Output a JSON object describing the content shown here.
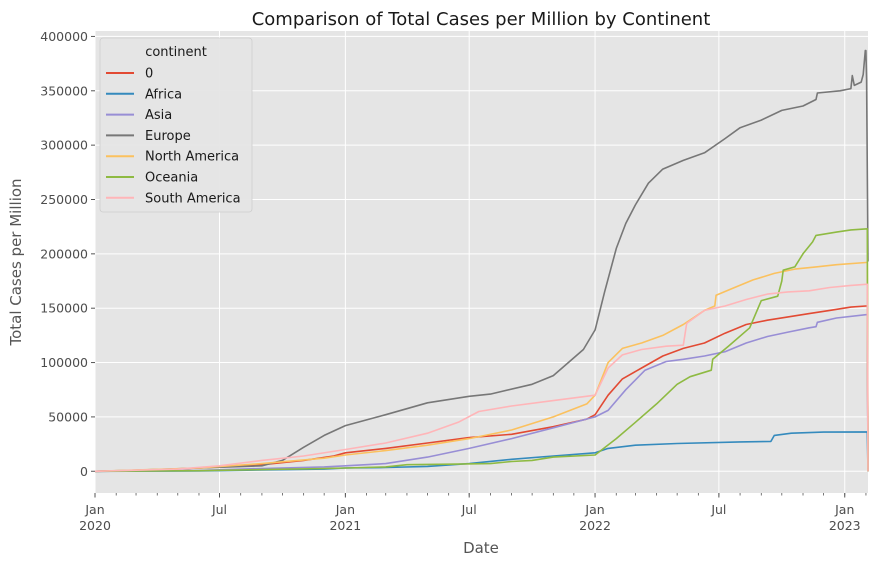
{
  "chart_data": {
    "type": "line",
    "title": "Comparison of Total Cases per Million by Continent",
    "xlabel": "Date",
    "ylabel": "Total Cases per Million",
    "xlim": [
      "2020-01-01",
      "2023-02-04"
    ],
    "ylim": [
      -20000,
      405000
    ],
    "yticks": [
      0,
      50000,
      100000,
      150000,
      200000,
      250000,
      300000,
      350000,
      400000
    ],
    "xticks": [
      {
        "date": "2020-01-01",
        "label": "Jan",
        "year": "2020"
      },
      {
        "date": "2020-07-01",
        "label": "Jul",
        "year": ""
      },
      {
        "date": "2021-01-01",
        "label": "Jan",
        "year": "2021"
      },
      {
        "date": "2021-07-01",
        "label": "Jul",
        "year": ""
      },
      {
        "date": "2022-01-01",
        "label": "Jan",
        "year": "2022"
      },
      {
        "date": "2022-07-01",
        "label": "Jul",
        "year": ""
      },
      {
        "date": "2023-01-01",
        "label": "Jan",
        "year": "2023"
      }
    ],
    "grid": true,
    "legend": {
      "title": "continent",
      "position": "top-left"
    },
    "series": [
      {
        "name": "0",
        "color": "#E24A33",
        "points": [
          [
            "2020-01-01",
            0
          ],
          [
            "2020-03-01",
            500
          ],
          [
            "2020-06-01",
            3000
          ],
          [
            "2020-09-01",
            6000
          ],
          [
            "2020-11-01",
            10000
          ],
          [
            "2020-12-15",
            14000
          ],
          [
            "2021-01-01",
            17000
          ],
          [
            "2021-03-01",
            21000
          ],
          [
            "2021-05-01",
            26000
          ],
          [
            "2021-07-01",
            31000
          ],
          [
            "2021-09-01",
            34000
          ],
          [
            "2021-11-01",
            41000
          ],
          [
            "2021-12-20",
            48000
          ],
          [
            "2022-01-01",
            52000
          ],
          [
            "2022-01-20",
            70000
          ],
          [
            "2022-02-10",
            85000
          ],
          [
            "2022-03-10",
            95000
          ],
          [
            "2022-04-10",
            106000
          ],
          [
            "2022-05-10",
            113000
          ],
          [
            "2022-06-10",
            118000
          ],
          [
            "2022-07-10",
            127000
          ],
          [
            "2022-08-10",
            135000
          ],
          [
            "2022-09-10",
            139000
          ],
          [
            "2022-10-10",
            142000
          ],
          [
            "2022-11-10",
            145000
          ],
          [
            "2022-12-10",
            148000
          ],
          [
            "2023-01-10",
            151000
          ],
          [
            "2023-02-01",
            152000
          ],
          [
            "2023-02-03",
            152000
          ],
          [
            "2023-02-04",
            0
          ]
        ]
      },
      {
        "name": "Africa",
        "color": "#348ABD",
        "points": [
          [
            "2020-01-01",
            0
          ],
          [
            "2020-06-01",
            300
          ],
          [
            "2020-09-01",
            1200
          ],
          [
            "2020-12-01",
            2000
          ],
          [
            "2021-01-01",
            3000
          ],
          [
            "2021-03-01",
            3500
          ],
          [
            "2021-05-01",
            4500
          ],
          [
            "2021-07-01",
            7000
          ],
          [
            "2021-09-01",
            11000
          ],
          [
            "2021-11-01",
            14000
          ],
          [
            "2022-01-01",
            17000
          ],
          [
            "2022-01-20",
            21000
          ],
          [
            "2022-03-01",
            24000
          ],
          [
            "2022-05-01",
            25500
          ],
          [
            "2022-08-01",
            27000
          ],
          [
            "2022-09-15",
            27500
          ],
          [
            "2022-09-20",
            33000
          ],
          [
            "2022-10-15",
            35000
          ],
          [
            "2022-12-01",
            36000
          ],
          [
            "2023-02-03",
            36200
          ],
          [
            "2023-02-04",
            0
          ]
        ]
      },
      {
        "name": "Asia",
        "color": "#988ED5",
        "points": [
          [
            "2020-01-01",
            0
          ],
          [
            "2020-06-01",
            800
          ],
          [
            "2020-09-01",
            2500
          ],
          [
            "2020-12-01",
            4000
          ],
          [
            "2021-01-01",
            5000
          ],
          [
            "2021-03-01",
            7000
          ],
          [
            "2021-05-01",
            13000
          ],
          [
            "2021-07-01",
            21000
          ],
          [
            "2021-09-01",
            30000
          ],
          [
            "2021-11-01",
            40000
          ],
          [
            "2022-01-01",
            50000
          ],
          [
            "2022-01-20",
            56000
          ],
          [
            "2022-02-15",
            75000
          ],
          [
            "2022-03-15",
            93000
          ],
          [
            "2022-04-15",
            101000
          ],
          [
            "2022-05-10",
            103000
          ],
          [
            "2022-06-10",
            106000
          ],
          [
            "2022-07-10",
            110000
          ],
          [
            "2022-08-10",
            118000
          ],
          [
            "2022-09-10",
            124000
          ],
          [
            "2022-10-10",
            128000
          ],
          [
            "2022-11-10",
            132000
          ],
          [
            "2022-11-20",
            133000
          ],
          [
            "2022-11-22",
            137000
          ],
          [
            "2022-12-20",
            141000
          ],
          [
            "2023-02-01",
            144000
          ],
          [
            "2023-02-03",
            144000
          ],
          [
            "2023-02-04",
            0
          ]
        ]
      },
      {
        "name": "Europe",
        "color": "#777777",
        "points": [
          [
            "2020-01-01",
            0
          ],
          [
            "2020-03-01",
            1000
          ],
          [
            "2020-06-01",
            3000
          ],
          [
            "2020-09-01",
            5000
          ],
          [
            "2020-10-01",
            10000
          ],
          [
            "2020-11-01",
            22000
          ],
          [
            "2020-12-01",
            33000
          ],
          [
            "2021-01-01",
            42000
          ],
          [
            "2021-03-01",
            52000
          ],
          [
            "2021-05-01",
            63000
          ],
          [
            "2021-07-01",
            69000
          ],
          [
            "2021-08-01",
            71000
          ],
          [
            "2021-10-01",
            80000
          ],
          [
            "2021-11-01",
            88000
          ],
          [
            "2021-12-15",
            112000
          ],
          [
            "2022-01-01",
            130000
          ],
          [
            "2022-01-15",
            165000
          ],
          [
            "2022-02-01",
            205000
          ],
          [
            "2022-02-15",
            228000
          ],
          [
            "2022-03-01",
            245000
          ],
          [
            "2022-03-20",
            265000
          ],
          [
            "2022-04-10",
            278000
          ],
          [
            "2022-05-10",
            286000
          ],
          [
            "2022-06-10",
            293000
          ],
          [
            "2022-07-10",
            306000
          ],
          [
            "2022-08-01",
            316000
          ],
          [
            "2022-09-01",
            323000
          ],
          [
            "2022-10-01",
            332000
          ],
          [
            "2022-11-01",
            336000
          ],
          [
            "2022-11-20",
            342000
          ],
          [
            "2022-11-22",
            348000
          ],
          [
            "2022-12-25",
            350000
          ],
          [
            "2023-01-10",
            352000
          ],
          [
            "2023-01-12",
            364000
          ],
          [
            "2023-01-15",
            355000
          ],
          [
            "2023-01-25",
            358000
          ],
          [
            "2023-01-28",
            365000
          ],
          [
            "2023-01-31",
            387000
          ],
          [
            "2023-02-01",
            387000
          ],
          [
            "2023-02-02",
            360000
          ],
          [
            "2023-02-04",
            193000
          ]
        ]
      },
      {
        "name": "North America",
        "color": "#FBC15E",
        "points": [
          [
            "2020-01-01",
            0
          ],
          [
            "2020-06-01",
            3000
          ],
          [
            "2020-09-01",
            7000
          ],
          [
            "2020-12-01",
            12000
          ],
          [
            "2021-01-01",
            15000
          ],
          [
            "2021-03-01",
            19000
          ],
          [
            "2021-05-01",
            24000
          ],
          [
            "2021-07-01",
            30000
          ],
          [
            "2021-09-01",
            38000
          ],
          [
            "2021-11-01",
            50000
          ],
          [
            "2021-12-20",
            62000
          ],
          [
            "2022-01-01",
            70000
          ],
          [
            "2022-01-20",
            100000
          ],
          [
            "2022-02-10",
            113000
          ],
          [
            "2022-03-10",
            118000
          ],
          [
            "2022-04-10",
            125000
          ],
          [
            "2022-05-10",
            135000
          ],
          [
            "2022-06-10",
            148000
          ],
          [
            "2022-06-25",
            152000
          ],
          [
            "2022-06-27",
            162000
          ],
          [
            "2022-07-20",
            168000
          ],
          [
            "2022-08-20",
            176000
          ],
          [
            "2022-09-20",
            182000
          ],
          [
            "2022-10-20",
            186000
          ],
          [
            "2022-11-20",
            188000
          ],
          [
            "2022-12-20",
            190000
          ],
          [
            "2023-02-01",
            192000
          ],
          [
            "2023-02-03",
            192000
          ],
          [
            "2023-02-04",
            0
          ]
        ]
      },
      {
        "name": "Oceania",
        "color": "#8EBA42",
        "points": [
          [
            "2020-01-01",
            0
          ],
          [
            "2020-06-01",
            500
          ],
          [
            "2020-09-01",
            1500
          ],
          [
            "2020-12-01",
            2500
          ],
          [
            "2021-01-01",
            3000
          ],
          [
            "2021-03-01",
            4000
          ],
          [
            "2021-04-01",
            6000
          ],
          [
            "2021-06-01",
            6500
          ],
          [
            "2021-08-01",
            7000
          ],
          [
            "2021-09-01",
            9000
          ],
          [
            "2021-10-01",
            10000
          ],
          [
            "2021-11-01",
            13000
          ],
          [
            "2022-01-01",
            15000
          ],
          [
            "2022-02-01",
            30000
          ],
          [
            "2022-03-01",
            45000
          ],
          [
            "2022-04-01",
            62000
          ],
          [
            "2022-05-01",
            80000
          ],
          [
            "2022-05-20",
            87000
          ],
          [
            "2022-06-20",
            93000
          ],
          [
            "2022-06-22",
            103000
          ],
          [
            "2022-07-15",
            115000
          ],
          [
            "2022-08-15",
            132000
          ],
          [
            "2022-09-01",
            157000
          ],
          [
            "2022-09-25",
            161000
          ],
          [
            "2022-10-01",
            175000
          ],
          [
            "2022-10-03",
            185000
          ],
          [
            "2022-10-20",
            188000
          ],
          [
            "2022-11-01",
            200000
          ],
          [
            "2022-11-15",
            211000
          ],
          [
            "2022-11-20",
            217000
          ],
          [
            "2022-12-20",
            220000
          ],
          [
            "2023-01-10",
            222000
          ],
          [
            "2023-02-03",
            223000
          ],
          [
            "2023-02-04",
            0
          ]
        ]
      },
      {
        "name": "South America",
        "color": "#FFB5B8",
        "points": [
          [
            "2020-01-01",
            0
          ],
          [
            "2020-05-01",
            2000
          ],
          [
            "2020-07-01",
            5000
          ],
          [
            "2020-09-01",
            10000
          ],
          [
            "2020-11-01",
            14000
          ],
          [
            "2021-01-01",
            20000
          ],
          [
            "2021-03-01",
            26000
          ],
          [
            "2021-05-01",
            35000
          ],
          [
            "2021-06-15",
            45000
          ],
          [
            "2021-07-15",
            55000
          ],
          [
            "2021-09-01",
            60000
          ],
          [
            "2021-11-01",
            65000
          ],
          [
            "2022-01-01",
            70000
          ],
          [
            "2022-01-20",
            95000
          ],
          [
            "2022-02-10",
            107000
          ],
          [
            "2022-03-10",
            112000
          ],
          [
            "2022-04-15",
            115000
          ],
          [
            "2022-05-10",
            116000
          ],
          [
            "2022-05-15",
            136000
          ],
          [
            "2022-06-10",
            148000
          ],
          [
            "2022-07-10",
            152000
          ],
          [
            "2022-08-10",
            158000
          ],
          [
            "2022-09-10",
            163000
          ],
          [
            "2022-10-10",
            165000
          ],
          [
            "2022-11-10",
            166000
          ],
          [
            "2022-12-10",
            169000
          ],
          [
            "2023-01-10",
            171000
          ],
          [
            "2023-02-01",
            172000
          ],
          [
            "2023-02-03",
            172000
          ],
          [
            "2023-02-04",
            0
          ]
        ]
      }
    ]
  }
}
